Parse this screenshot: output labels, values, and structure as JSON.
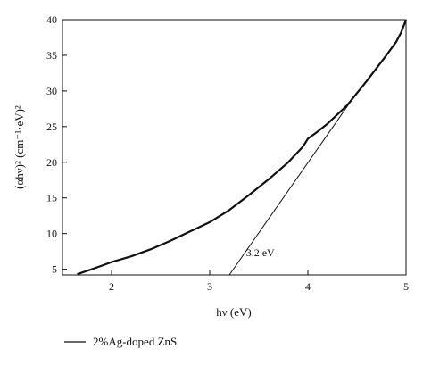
{
  "chart_data": {
    "type": "line",
    "xlabel": "hν (eV)",
    "ylabel": "(αhν)² (cm⁻¹·eV)²",
    "xlim": [
      1.5,
      5.0
    ],
    "ylim": [
      4.2,
      40
    ],
    "xticks": [
      2,
      3,
      4,
      5
    ],
    "yticks": [
      5,
      10,
      15,
      20,
      25,
      30,
      35,
      40
    ],
    "grid": false,
    "legend_position": "bottom-left",
    "series": [
      {
        "name": "2%Ag-doped ZnS",
        "x": [
          1.65,
          1.8,
          1.9,
          2.0,
          2.2,
          2.4,
          2.6,
          2.8,
          3.0,
          3.2,
          3.4,
          3.6,
          3.8,
          3.95,
          4.0,
          4.1,
          4.2,
          4.3,
          4.4,
          4.5,
          4.6,
          4.7,
          4.8,
          4.9,
          4.95,
          5.0
        ],
        "y": [
          4.3,
          5.0,
          5.5,
          6.0,
          6.8,
          7.8,
          9.0,
          10.3,
          11.6,
          13.3,
          15.4,
          17.6,
          20.0,
          22.2,
          23.3,
          24.3,
          25.4,
          26.7,
          28.0,
          29.7,
          31.4,
          33.2,
          35.0,
          36.9,
          38.2,
          40.0
        ]
      }
    ],
    "tangent_line": {
      "x": [
        3.2,
        4.45
      ],
      "y": [
        4.2,
        28.8
      ]
    },
    "annotations": [
      {
        "text": "3.2 eV",
        "x": 3.37,
        "y": 6.8
      }
    ]
  }
}
